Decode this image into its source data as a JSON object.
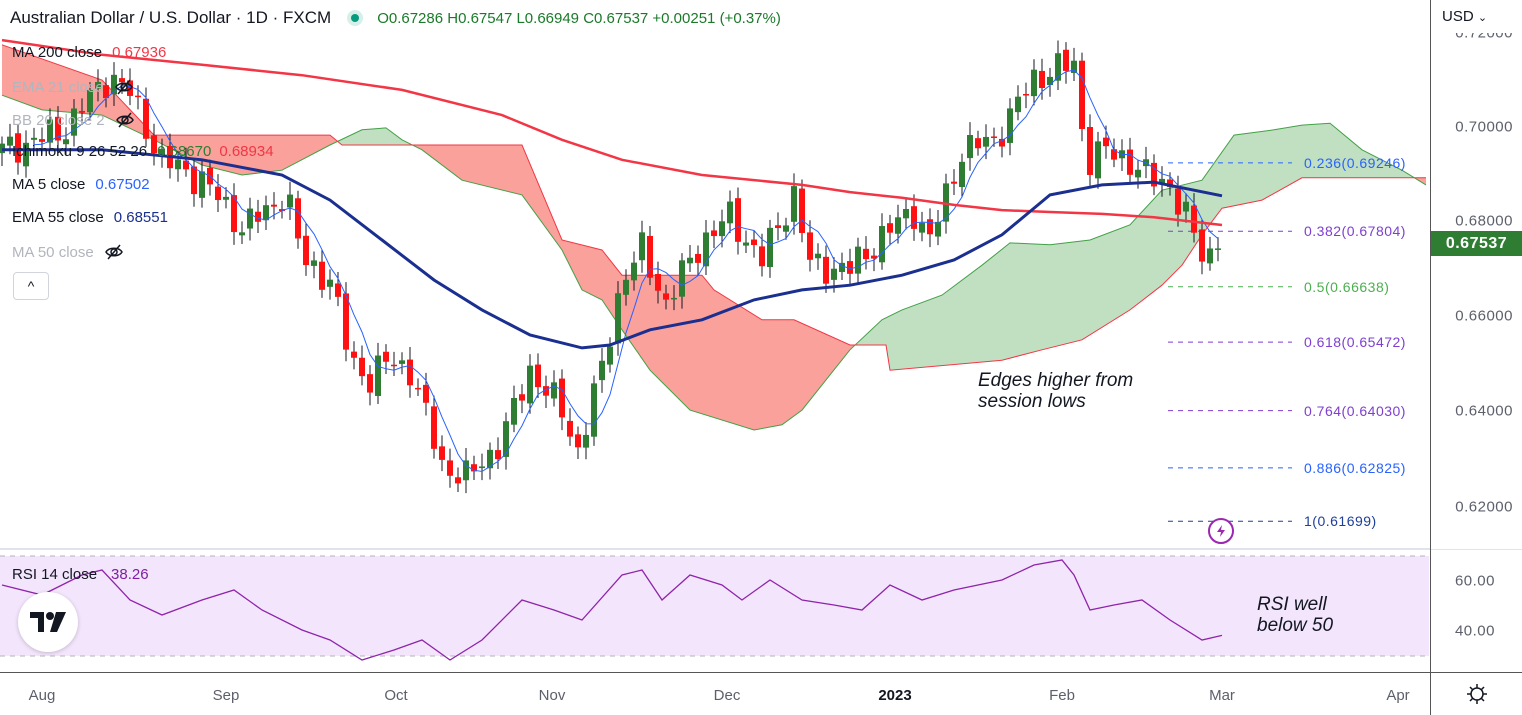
{
  "header": {
    "title": "Australian Dollar / U.S. Dollar · 1D · FXCM",
    "ohlc": "O0.67286 H0.67547 L0.66949 C0.67537 +0.00251 (+0.37%)"
  },
  "legend": [
    {
      "label": "MA 200 close",
      "value": "0.67936",
      "color": "#f23645"
    },
    {
      "label": "EMA 21 close",
      "hidden": true
    },
    {
      "label": "BB 20 close 2",
      "hidden": true
    },
    {
      "label": "Ichimoku 9 26 52 26",
      "value": "0.68670",
      "value2": "0.68934",
      "color": "#2e7d32",
      "color2": "#f23645"
    },
    {
      "label": "MA 5 close",
      "value": "0.67502",
      "color": "#2962ff"
    },
    {
      "label": "EMA 55 close",
      "value": "0.68551",
      "color": "#1a2f8f"
    },
    {
      "label": "MA 50 close",
      "hidden": true
    }
  ],
  "collapse_label": "^",
  "currency": "USD",
  "current_price": "0.67537",
  "price_axis": [
    "0.72000",
    "0.70000",
    "0.68000",
    "0.66000",
    "0.64000",
    "0.62000"
  ],
  "rsi_axis": [
    "60.00",
    "40.00"
  ],
  "time_axis": [
    "Aug",
    "Sep",
    "Oct",
    "Nov",
    "Dec",
    "2023",
    "Feb",
    "Mar",
    "Apr"
  ],
  "fib_levels": [
    {
      "label": "0.236(0.69246)",
      "price": 0.69246,
      "color": "#2962ff"
    },
    {
      "label": "0.382(0.67804)",
      "price": 0.67804,
      "color": "#7e3fd0"
    },
    {
      "label": "0.5(0.66638)",
      "price": 0.66638,
      "color": "#4caf50"
    },
    {
      "label": "0.618(0.65472)",
      "price": 0.65472,
      "color": "#7e3fd0"
    },
    {
      "label": "0.764(0.64030)",
      "price": 0.6403,
      "color": "#7e3fd0"
    },
    {
      "label": "0.886(0.62825)",
      "price": 0.62825,
      "color": "#2962ff"
    },
    {
      "label": "1(0.61699)",
      "price": 0.61699,
      "color": "#1e3f9a"
    }
  ],
  "annotations": {
    "price_note": [
      "Edges higher from",
      "session lows"
    ],
    "rsi_note": [
      "RSI well",
      "below 50"
    ]
  },
  "rsi": {
    "label": "RSI 14 close",
    "value": "38.26"
  },
  "chart_data": {
    "type": "candlestick",
    "title": "Australian Dollar / U.S. Dollar · 1D · FXCM",
    "ylim": [
      0.612,
      0.722
    ],
    "close_path": [
      [
        0,
        0.695
      ],
      [
        7.5,
        0.699
      ],
      [
        13.5,
        0.711
      ],
      [
        16,
        0.707
      ],
      [
        20,
        0.693
      ],
      [
        25,
        0.689
      ],
      [
        30,
        0.679
      ],
      [
        33.5,
        0.6825
      ],
      [
        35.5,
        0.687
      ],
      [
        37.5,
        0.672
      ],
      [
        41,
        0.668
      ],
      [
        43.5,
        0.651
      ],
      [
        46,
        0.647
      ],
      [
        48.5,
        0.651
      ],
      [
        51,
        0.649
      ],
      [
        55,
        0.629
      ],
      [
        58,
        0.626
      ],
      [
        62.5,
        0.634
      ],
      [
        66,
        0.649
      ],
      [
        70,
        0.64
      ],
      [
        72,
        0.632
      ],
      [
        75,
        0.649
      ],
      [
        77.5,
        0.668
      ],
      [
        80,
        0.674
      ],
      [
        83,
        0.663
      ],
      [
        87.5,
        0.676
      ],
      [
        91,
        0.681
      ],
      [
        95,
        0.672
      ],
      [
        99,
        0.686
      ],
      [
        101,
        0.671
      ],
      [
        106,
        0.67
      ],
      [
        110,
        0.677
      ],
      [
        114,
        0.6825
      ],
      [
        116,
        0.676
      ],
      [
        120,
        0.695
      ],
      [
        124,
        0.6973
      ],
      [
        129,
        0.71
      ],
      [
        131,
        0.712
      ],
      [
        134,
        0.713
      ],
      [
        135.5,
        0.693
      ],
      [
        137.5,
        0.695
      ],
      [
        141,
        0.693
      ],
      [
        143.5,
        0.689
      ],
      [
        146,
        0.688
      ],
      [
        148,
        0.681
      ],
      [
        150,
        0.673
      ],
      [
        151.5,
        0.6735
      ],
      [
        152.5,
        0.67537
      ]
    ],
    "ma200_path": [
      [
        0,
        0.7183
      ],
      [
        12.5,
        0.7152
      ],
      [
        25,
        0.7131
      ],
      [
        37.5,
        0.7109
      ],
      [
        50,
        0.7078
      ],
      [
        62.5,
        0.7025
      ],
      [
        70,
        0.6973
      ],
      [
        77.5,
        0.6931
      ],
      [
        87.5,
        0.6899
      ],
      [
        100,
        0.6878
      ],
      [
        106,
        0.6863
      ],
      [
        112.5,
        0.6851
      ],
      [
        119,
        0.6836
      ],
      [
        125,
        0.6825
      ],
      [
        131,
        0.6821
      ],
      [
        137.5,
        0.6817
      ],
      [
        144,
        0.681
      ],
      [
        152.5,
        0.67936
      ]
    ],
    "ema55_path": [
      [
        0,
        0.6952
      ],
      [
        12.5,
        0.6952
      ],
      [
        25,
        0.6931
      ],
      [
        35,
        0.6899
      ],
      [
        41,
        0.6846
      ],
      [
        47.5,
        0.6762
      ],
      [
        54,
        0.6678
      ],
      [
        60,
        0.6615
      ],
      [
        66,
        0.6562
      ],
      [
        72.5,
        0.6535
      ],
      [
        76,
        0.6541
      ],
      [
        81,
        0.6573
      ],
      [
        87.5,
        0.6594
      ],
      [
        94,
        0.6636
      ],
      [
        100,
        0.6657
      ],
      [
        106,
        0.6667
      ],
      [
        112.5,
        0.6688
      ],
      [
        119,
        0.672
      ],
      [
        125,
        0.6773
      ],
      [
        131,
        0.6857
      ],
      [
        137.5,
        0.6878
      ],
      [
        144,
        0.6884
      ],
      [
        152.5,
        0.68551
      ]
    ],
    "ichimoku_span_a": [
      [
        0,
        0.7067
      ],
      [
        5,
        0.7036
      ],
      [
        12.5,
        0.7025
      ],
      [
        19,
        0.6973
      ],
      [
        25,
        0.692
      ],
      [
        30,
        0.6899
      ],
      [
        35,
        0.6909
      ],
      [
        41,
        0.6962
      ],
      [
        45,
        0.6994
      ],
      [
        48,
        0.6998
      ],
      [
        50,
        0.6973
      ],
      [
        52.5,
        0.6952
      ],
      [
        57.5,
        0.6888
      ],
      [
        65,
        0.6857
      ],
      [
        70,
        0.6741
      ],
      [
        72.5,
        0.6657
      ],
      [
        75,
        0.6636
      ],
      [
        77.5,
        0.6573
      ],
      [
        81,
        0.6488
      ],
      [
        86,
        0.6404
      ],
      [
        94,
        0.6362
      ],
      [
        97.5,
        0.6373
      ],
      [
        100,
        0.6404
      ],
      [
        106,
        0.6531
      ],
      [
        110,
        0.6594
      ],
      [
        112.5,
        0.6615
      ],
      [
        117.5,
        0.6646
      ],
      [
        122.5,
        0.6709
      ],
      [
        126,
        0.6756
      ],
      [
        131,
        0.6752
      ],
      [
        136,
        0.6762
      ],
      [
        141,
        0.6794
      ],
      [
        145,
        0.6867
      ],
      [
        150,
        0.6888
      ],
      [
        154,
        0.6983
      ],
      [
        159,
        0.6994
      ],
      [
        162.5,
        0.7004
      ],
      [
        166,
        0.7008
      ],
      [
        170,
        0.6952
      ],
      [
        175,
        0.6909
      ],
      [
        178,
        0.6878
      ]
    ],
    "ichimoku_span_b": [
      [
        0,
        0.7173
      ],
      [
        12.5,
        0.7099
      ],
      [
        19,
        0.6983
      ],
      [
        41,
        0.6983
      ],
      [
        42.5,
        0.6962
      ],
      [
        65,
        0.6962
      ],
      [
        70,
        0.6762
      ],
      [
        75,
        0.6741
      ],
      [
        77.5,
        0.6688
      ],
      [
        87.5,
        0.6688
      ],
      [
        89,
        0.6657
      ],
      [
        95,
        0.6594
      ],
      [
        99,
        0.6594
      ],
      [
        106,
        0.6541
      ],
      [
        110.5,
        0.6541
      ],
      [
        111,
        0.6488
      ],
      [
        125,
        0.6509
      ],
      [
        130,
        0.6531
      ],
      [
        135,
        0.6552
      ],
      [
        141,
        0.6615
      ],
      [
        145,
        0.6667
      ],
      [
        147.5,
        0.6709
      ],
      [
        150,
        0.6773
      ],
      [
        152.5,
        0.6829
      ],
      [
        157.5,
        0.6846
      ],
      [
        162.5,
        0.6893
      ],
      [
        178,
        0.6893
      ]
    ],
    "rsi_path": [
      [
        0,
        58.4
      ],
      [
        5,
        54.4
      ],
      [
        10,
        62.4
      ],
      [
        12.5,
        64.4
      ],
      [
        16,
        52.4
      ],
      [
        20,
        46.4
      ],
      [
        25,
        52.4
      ],
      [
        29,
        56.4
      ],
      [
        32.5,
        48.4
      ],
      [
        37.5,
        40.4
      ],
      [
        41,
        36.4
      ],
      [
        45,
        28.4
      ],
      [
        49,
        32.4
      ],
      [
        52.5,
        36.4
      ],
      [
        56,
        28.4
      ],
      [
        60,
        36.4
      ],
      [
        65,
        52.4
      ],
      [
        69,
        48.4
      ],
      [
        72.5,
        44.4
      ],
      [
        77.5,
        62.4
      ],
      [
        80,
        64.4
      ],
      [
        82.5,
        52.4
      ],
      [
        86,
        62.4
      ],
      [
        90,
        58.4
      ],
      [
        92.5,
        52.4
      ],
      [
        96,
        60.4
      ],
      [
        100,
        52.4
      ],
      [
        104,
        50.4
      ],
      [
        107.5,
        48.4
      ],
      [
        111,
        58.4
      ],
      [
        115,
        52.4
      ],
      [
        119,
        56.4
      ],
      [
        125,
        60.4
      ],
      [
        129,
        66.4
      ],
      [
        132.5,
        68.4
      ],
      [
        134,
        62.4
      ],
      [
        136,
        48.4
      ],
      [
        139,
        50.4
      ],
      [
        142.5,
        52.4
      ],
      [
        146,
        44.4
      ],
      [
        150,
        36.4
      ],
      [
        152.5,
        38.26
      ]
    ],
    "rsi_ylim": [
      25,
      72
    ]
  }
}
